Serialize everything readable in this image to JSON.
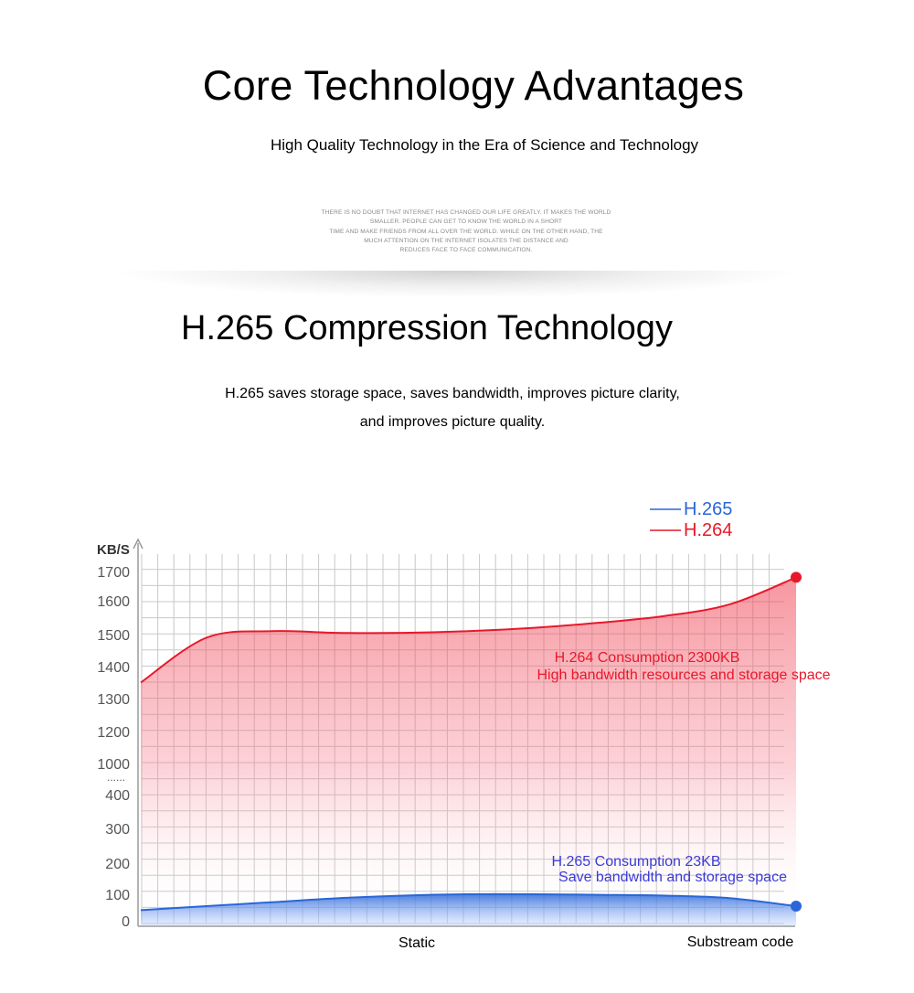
{
  "header": {
    "title": "Core Technology Advantages",
    "subtitle": "High Quality Technology in the Era of Science and Technology",
    "small_text": [
      "THERE IS NO DOUBT THAT INTERNET HAS CHANGED OUR LIFE GREATLY. IT MAKES THE WORLD",
      "SMALLER. PEOPLE CAN GET TO KNOW THE WORLD IN A SHORT",
      "TIME AND MAKE FRIENDS FROM ALL OVER THE WORLD. WHILE ON THE OTHER HAND, THE",
      "MUCH ATTENTION ON THE INTERNET ISOLATES THE DISTANCE AND",
      "REDUCES FACE TO FACE COMMUNICATION."
    ]
  },
  "section": {
    "title": "H.265 Compression Technology",
    "desc_line1": "H.265 saves storage space, saves bandwidth, improves picture clarity,",
    "desc_line2": "and improves picture quality."
  },
  "chart_data": {
    "type": "area",
    "ylabel": "KB/S",
    "yticks": [
      "0",
      "100",
      "200",
      "300",
      "400",
      "1000",
      "1200",
      "1300",
      "1400",
      "1500",
      "1600",
      "1700"
    ],
    "axis_break": "......",
    "x_labels": [
      "Static",
      "Substream code"
    ],
    "x": [
      0,
      1,
      2,
      3,
      4,
      5,
      6,
      7,
      8,
      9,
      10
    ],
    "series": [
      {
        "name": "H.264",
        "color": "#e8182a",
        "values": [
          1350,
          1490,
          1510,
          1505,
          1505,
          1510,
          1520,
          1535,
          1555,
          1590,
          1680
        ],
        "annotation_1": "H.264 Consumption 2300KB",
        "annotation_2": "High bandwidth resources and storage space"
      },
      {
        "name": "H.265",
        "color": "#2a66d8",
        "values": [
          40,
          55,
          70,
          85,
          95,
          100,
          100,
          98,
          95,
          85,
          55
        ],
        "annotation_1": "H.265 Consumption 23KB",
        "annotation_2": "Save bandwidth and storage space"
      }
    ],
    "grid": true,
    "legend_position": "top-right"
  }
}
